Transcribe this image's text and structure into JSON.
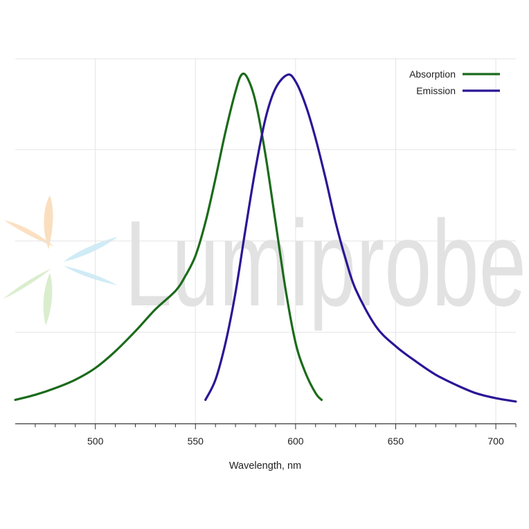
{
  "watermark": {
    "text": "Lumiprobe"
  },
  "chart_data": {
    "type": "line",
    "title": "",
    "xlabel": "Wavelength, nm",
    "ylabel": "",
    "xlim": [
      460,
      710
    ],
    "ylim": [
      0,
      1
    ],
    "x_ticks": [
      500,
      550,
      600,
      650,
      700
    ],
    "grid": true,
    "legend_position": "top-right",
    "series": [
      {
        "name": "Absorption",
        "color": "#1b6b1b",
        "points": [
          [
            460,
            0.03
          ],
          [
            470,
            0.045
          ],
          [
            480,
            0.065
          ],
          [
            490,
            0.09
          ],
          [
            500,
            0.125
          ],
          [
            510,
            0.175
          ],
          [
            520,
            0.235
          ],
          [
            530,
            0.3
          ],
          [
            540,
            0.355
          ],
          [
            545,
            0.4
          ],
          [
            550,
            0.46
          ],
          [
            555,
            0.56
          ],
          [
            560,
            0.69
          ],
          [
            565,
            0.83
          ],
          [
            570,
            0.95
          ],
          [
            573,
            1.0
          ],
          [
            576,
            0.99
          ],
          [
            580,
            0.92
          ],
          [
            585,
            0.76
          ],
          [
            590,
            0.56
          ],
          [
            595,
            0.36
          ],
          [
            600,
            0.2
          ],
          [
            605,
            0.11
          ],
          [
            610,
            0.05
          ],
          [
            613,
            0.03
          ]
        ]
      },
      {
        "name": "Emission",
        "color": "#2a1696",
        "points": [
          [
            555,
            0.03
          ],
          [
            560,
            0.09
          ],
          [
            565,
            0.2
          ],
          [
            570,
            0.35
          ],
          [
            575,
            0.54
          ],
          [
            580,
            0.72
          ],
          [
            585,
            0.87
          ],
          [
            590,
            0.96
          ],
          [
            596,
            1.0
          ],
          [
            600,
            0.98
          ],
          [
            605,
            0.91
          ],
          [
            610,
            0.81
          ],
          [
            615,
            0.69
          ],
          [
            620,
            0.56
          ],
          [
            625,
            0.45
          ],
          [
            630,
            0.36
          ],
          [
            640,
            0.25
          ],
          [
            650,
            0.19
          ],
          [
            660,
            0.145
          ],
          [
            670,
            0.105
          ],
          [
            680,
            0.075
          ],
          [
            690,
            0.05
          ],
          [
            700,
            0.035
          ],
          [
            710,
            0.025
          ]
        ]
      }
    ]
  }
}
